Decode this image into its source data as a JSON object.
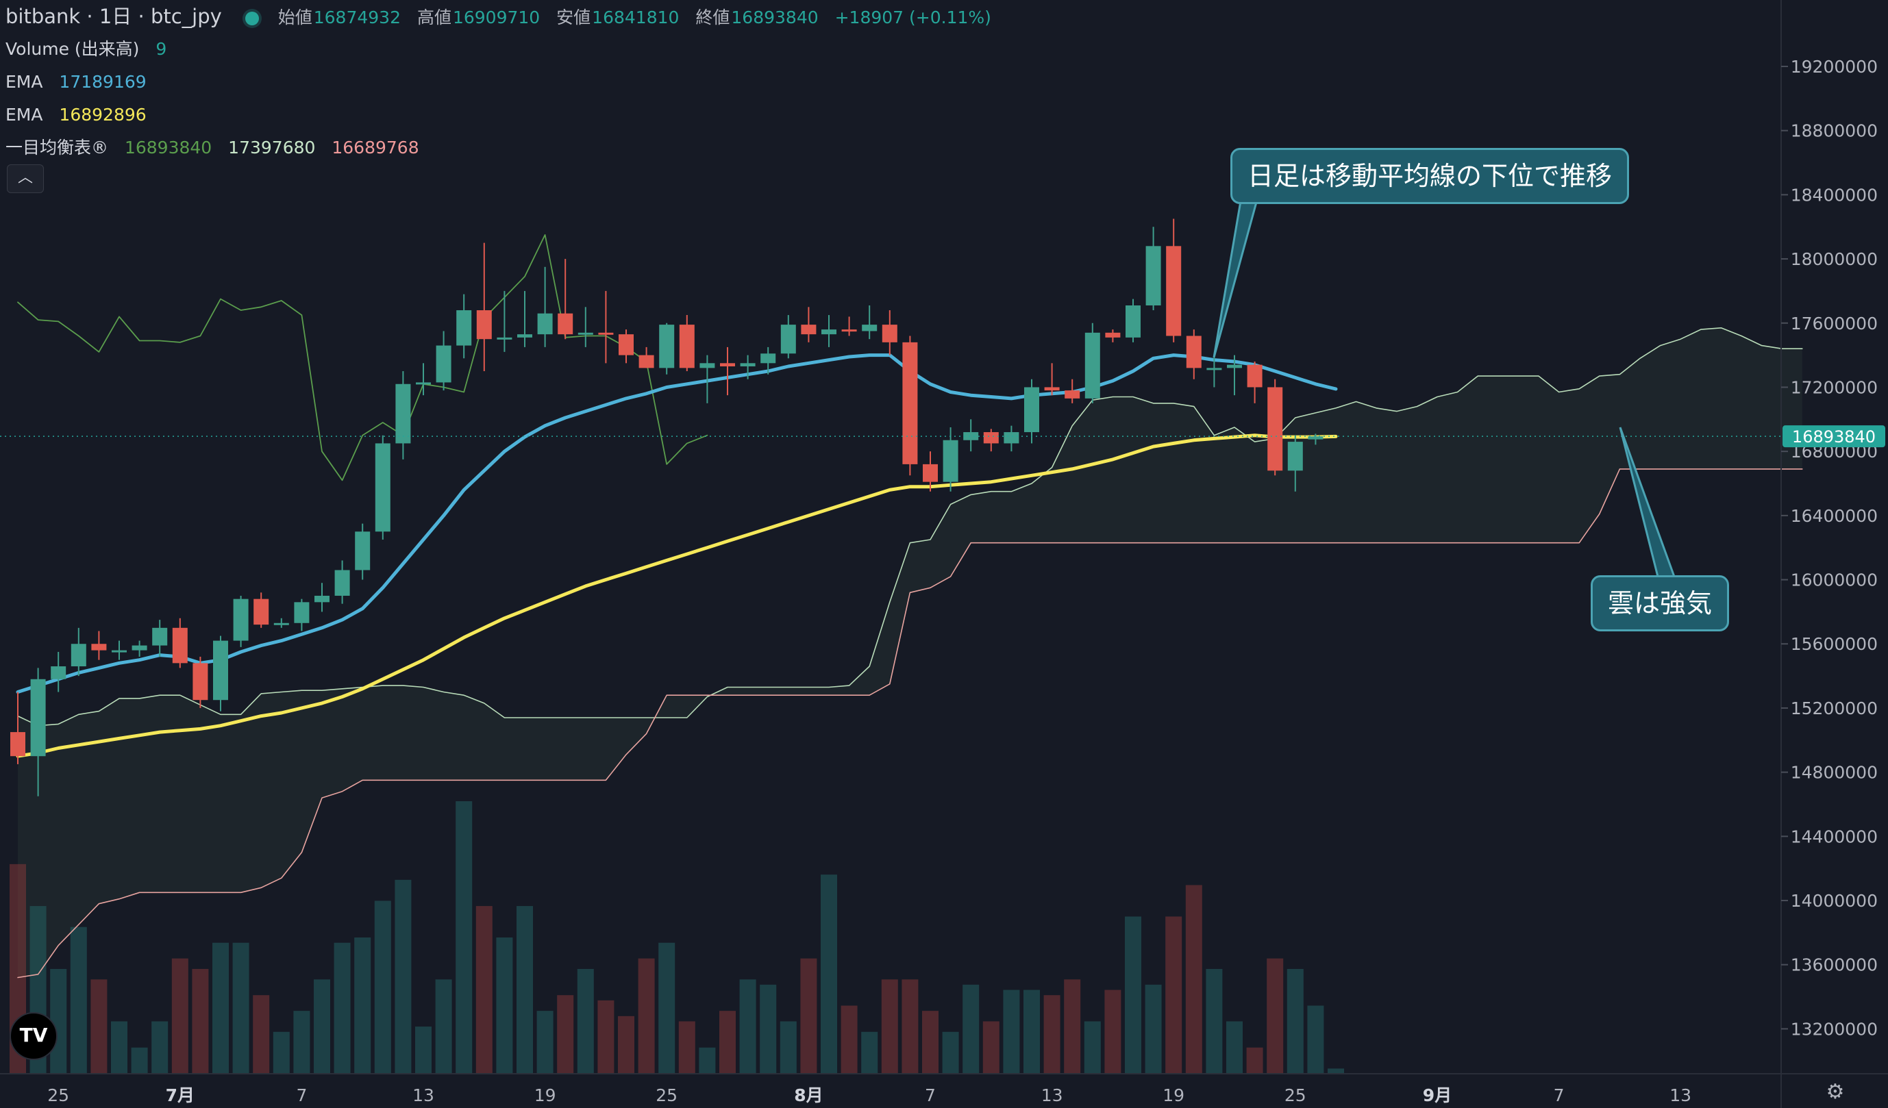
{
  "header": {
    "title": "bitbank · 1日 · btc_jpy",
    "ohlc": [
      {
        "k": "始値",
        "v": "16874932"
      },
      {
        "k": "高値",
        "v": "16909710"
      },
      {
        "k": "安値",
        "v": "16841810"
      },
      {
        "k": "終値",
        "v": "16893840"
      }
    ],
    "change": "+18907 (+0.11%)"
  },
  "indicators": {
    "volume": {
      "label": "Volume (出来高)",
      "value": "9"
    },
    "ema1": {
      "label": "EMA",
      "value": "17189169",
      "color": "#4fb3d9"
    },
    "ema2": {
      "label": "EMA",
      "value": "16892896",
      "color": "#f5e85a"
    },
    "ichimoku": {
      "label": "一目均衡表®",
      "values": [
        "16893840",
        "17397680",
        "16689768"
      ],
      "colors": [
        "#5b9e4d",
        "#c8e6c9",
        "#ef9a9a"
      ]
    }
  },
  "callouts": {
    "daily": "日足は移動平均線の下位で推移",
    "cloud": "雲は強気"
  },
  "price_tag": "16893840",
  "colors": {
    "up": "#3e9e8c",
    "down": "#e15a4f",
    "background": "#161a25",
    "grid": "#2a2e39"
  },
  "chart_data": {
    "type": "candlestick",
    "yaxis_ticks": [
      13200000,
      13600000,
      14000000,
      14400000,
      14800000,
      15200000,
      15600000,
      16000000,
      16400000,
      16800000,
      17200000,
      17600000,
      18000000,
      18400000,
      18800000,
      19200000
    ],
    "ylim": [
      12920000,
      19550000
    ],
    "xaxis_ticks": [
      {
        "i": 2,
        "label": "25",
        "bold": false
      },
      {
        "i": 8,
        "label": "7月",
        "bold": true
      },
      {
        "i": 14,
        "label": "7",
        "bold": false
      },
      {
        "i": 20,
        "label": "13",
        "bold": false
      },
      {
        "i": 26,
        "label": "19",
        "bold": false
      },
      {
        "i": 32,
        "label": "25",
        "bold": false
      },
      {
        "i": 39,
        "label": "8月",
        "bold": true
      },
      {
        "i": 45,
        "label": "7",
        "bold": false
      },
      {
        "i": 51,
        "label": "13",
        "bold": false
      },
      {
        "i": 57,
        "label": "19",
        "bold": false
      },
      {
        "i": 63,
        "label": "25",
        "bold": false
      },
      {
        "i": 70,
        "label": "9月",
        "bold": true
      },
      {
        "i": 76,
        "label": "7",
        "bold": false
      },
      {
        "i": 82,
        "label": "13",
        "bold": false
      }
    ],
    "candles": [
      [
        15050000,
        15300000,
        14850000,
        14900000
      ],
      [
        14900000,
        15450000,
        14650000,
        15380000
      ],
      [
        15380000,
        15550000,
        15300000,
        15460000
      ],
      [
        15460000,
        15700000,
        15400000,
        15600000
      ],
      [
        15600000,
        15680000,
        15500000,
        15560000
      ],
      [
        15560000,
        15620000,
        15500000,
        15560000
      ],
      [
        15560000,
        15620000,
        15520000,
        15590000
      ],
      [
        15590000,
        15750000,
        15520000,
        15700000
      ],
      [
        15700000,
        15760000,
        15450000,
        15480000
      ],
      [
        15480000,
        15520000,
        15200000,
        15250000
      ],
      [
        15250000,
        15650000,
        15180000,
        15620000
      ],
      [
        15620000,
        15900000,
        15580000,
        15880000
      ],
      [
        15880000,
        15920000,
        15700000,
        15720000
      ],
      [
        15720000,
        15760000,
        15700000,
        15730000
      ],
      [
        15730000,
        15880000,
        15680000,
        15860000
      ],
      [
        15860000,
        15980000,
        15800000,
        15900000
      ],
      [
        15900000,
        16120000,
        15850000,
        16060000
      ],
      [
        16060000,
        16350000,
        16000000,
        16300000
      ],
      [
        16300000,
        16900000,
        16250000,
        16850000
      ],
      [
        16850000,
        17300000,
        16750000,
        17220000
      ],
      [
        17220000,
        17350000,
        17150000,
        17230000
      ],
      [
        17230000,
        17550000,
        17180000,
        17460000
      ],
      [
        17460000,
        17780000,
        17380000,
        17680000
      ],
      [
        17680000,
        18100000,
        17300000,
        17500000
      ],
      [
        17500000,
        17800000,
        17420000,
        17510000
      ],
      [
        17510000,
        17800000,
        17450000,
        17530000
      ],
      [
        17530000,
        17950000,
        17450000,
        17660000
      ],
      [
        17660000,
        18000000,
        17500000,
        17530000
      ],
      [
        17530000,
        17700000,
        17450000,
        17540000
      ],
      [
        17540000,
        17800000,
        17350000,
        17530000
      ],
      [
        17530000,
        17560000,
        17350000,
        17400000
      ],
      [
        17400000,
        17450000,
        17320000,
        17320000
      ],
      [
        17320000,
        17600000,
        17280000,
        17590000
      ],
      [
        17590000,
        17650000,
        17300000,
        17320000
      ],
      [
        17320000,
        17400000,
        17100000,
        17350000
      ],
      [
        17350000,
        17450000,
        17150000,
        17330000
      ],
      [
        17330000,
        17400000,
        17250000,
        17350000
      ],
      [
        17350000,
        17450000,
        17280000,
        17410000
      ],
      [
        17410000,
        17650000,
        17380000,
        17590000
      ],
      [
        17590000,
        17700000,
        17480000,
        17530000
      ],
      [
        17530000,
        17650000,
        17450000,
        17560000
      ],
      [
        17560000,
        17640000,
        17520000,
        17550000
      ],
      [
        17550000,
        17710000,
        17500000,
        17590000
      ],
      [
        17590000,
        17680000,
        17400000,
        17480000
      ],
      [
        17480000,
        17520000,
        16650000,
        16720000
      ],
      [
        16720000,
        16800000,
        16550000,
        16610000
      ],
      [
        16610000,
        16950000,
        16550000,
        16870000
      ],
      [
        16870000,
        17000000,
        16800000,
        16920000
      ],
      [
        16920000,
        16940000,
        16800000,
        16850000
      ],
      [
        16850000,
        16960000,
        16800000,
        16920000
      ],
      [
        16920000,
        17250000,
        16850000,
        17200000
      ],
      [
        17200000,
        17350000,
        17150000,
        17180000
      ],
      [
        17180000,
        17250000,
        17100000,
        17130000
      ],
      [
        17130000,
        17600000,
        17100000,
        17540000
      ],
      [
        17540000,
        17560000,
        17480000,
        17510000
      ],
      [
        17510000,
        17750000,
        17480000,
        17710000
      ],
      [
        17710000,
        18200000,
        17680000,
        18080000
      ],
      [
        18080000,
        18250000,
        17480000,
        17520000
      ],
      [
        17520000,
        17560000,
        17250000,
        17320000
      ],
      [
        17320000,
        17400000,
        17200000,
        17320000
      ],
      [
        17320000,
        17400000,
        17150000,
        17340000
      ],
      [
        17340000,
        17360000,
        17100000,
        17200000
      ],
      [
        17200000,
        17250000,
        16650000,
        16680000
      ],
      [
        16680000,
        16900000,
        16550000,
        16860000
      ],
      [
        16874932,
        16909710,
        16841810,
        16893840
      ]
    ],
    "volumes": [
      40,
      32,
      20,
      28,
      18,
      10,
      5,
      10,
      22,
      20,
      25,
      25,
      15,
      8,
      12,
      18,
      25,
      26,
      33,
      37,
      9,
      18,
      52,
      32,
      26,
      32,
      12,
      15,
      20,
      14,
      11,
      22,
      25,
      10,
      5,
      12,
      18,
      17,
      10,
      22,
      38,
      13,
      8,
      18,
      18,
      12,
      8,
      17,
      10,
      16,
      16,
      15,
      18,
      10,
      16,
      30,
      17,
      30,
      36,
      20,
      10,
      5,
      22,
      20,
      13,
      1
    ],
    "ema_fast": [
      15300000,
      15340000,
      15380000,
      15420000,
      15450000,
      15480000,
      15500000,
      15530000,
      15520000,
      15480000,
      15500000,
      15550000,
      15590000,
      15620000,
      15660000,
      15700000,
      15750000,
      15820000,
      15950000,
      16100000,
      16250000,
      16400000,
      16560000,
      16680000,
      16800000,
      16890000,
      16960000,
      17010000,
      17050000,
      17090000,
      17130000,
      17160000,
      17200000,
      17220000,
      17240000,
      17260000,
      17280000,
      17300000,
      17330000,
      17350000,
      17370000,
      17390000,
      17400000,
      17400000,
      17300000,
      17220000,
      17170000,
      17150000,
      17140000,
      17130000,
      17150000,
      17160000,
      17170000,
      17200000,
      17240000,
      17300000,
      17380000,
      17400000,
      17390000,
      17370000,
      17360000,
      17340000,
      17300000,
      17260000,
      17220000,
      17189169
    ],
    "ema_slow": [
      14900000,
      14920000,
      14950000,
      14970000,
      14990000,
      15010000,
      15030000,
      15050000,
      15060000,
      15070000,
      15090000,
      15120000,
      15150000,
      15170000,
      15200000,
      15230000,
      15270000,
      15320000,
      15380000,
      15440000,
      15500000,
      15570000,
      15640000,
      15700000,
      15760000,
      15810000,
      15860000,
      15910000,
      15960000,
      16000000,
      16040000,
      16080000,
      16120000,
      16160000,
      16200000,
      16240000,
      16280000,
      16320000,
      16360000,
      16400000,
      16440000,
      16480000,
      16520000,
      16560000,
      16580000,
      16580000,
      16590000,
      16600000,
      16610000,
      16630000,
      16650000,
      16670000,
      16690000,
      16720000,
      16750000,
      16790000,
      16830000,
      16850000,
      16870000,
      16880000,
      16890000,
      16900000,
      16890000,
      16890000,
      16890000,
      16892896
    ],
    "lagging": [
      17730000,
      17620000,
      17610000,
      17520000,
      17420000,
      17640000,
      17490000,
      17490000,
      17480000,
      17520000,
      17750000,
      17680000,
      17700000,
      17740000,
      17650000,
      16800000,
      16620000,
      16900000,
      16980000,
      16900000,
      17220000,
      17200000,
      17170000,
      17630000,
      17760000,
      17890000,
      18150000,
      17510000,
      17520000,
      17520000,
      17450000,
      17360000,
      16720000,
      16850000,
      16900000
    ],
    "kumo_upper": [
      15150000,
      15090000,
      15100000,
      15160000,
      15180000,
      15260000,
      15260000,
      15280000,
      15280000,
      15220000,
      15160000,
      15160000,
      15290000,
      15300000,
      15310000,
      15310000,
      15320000,
      15330000,
      15340000,
      15340000,
      15330000,
      15300000,
      15280000,
      15230000,
      15140000,
      15140000,
      15140000,
      15140000,
      15140000,
      15140000,
      15140000,
      15140000,
      15140000,
      15140000,
      15270000,
      15330000,
      15330000,
      15330000,
      15330000,
      15330000,
      15330000,
      15340000,
      15460000,
      15860000,
      16230000,
      16250000,
      16470000,
      16530000,
      16550000,
      16550000,
      16600000,
      16700000,
      16960000,
      17120000,
      17140000,
      17140000,
      17100000,
      17100000,
      17080000,
      16900000,
      16950000,
      16860000,
      16880000,
      17010000,
      17040000,
      17070000,
      17110000,
      17070000,
      17050000,
      17080000,
      17140000,
      17170000,
      17270000,
      17270000,
      17270000,
      17270000,
      17170000,
      17190000,
      17270000,
      17280000,
      17380000,
      17460000,
      17500000,
      17560000,
      17570000,
      17520000,
      17460000,
      17440000,
      17440000
    ],
    "kumo_lower": [
      13520000,
      13540000,
      13720000,
      13850000,
      13980000,
      14010000,
      14050000,
      14050000,
      14050000,
      14050000,
      14050000,
      14050000,
      14080000,
      14140000,
      14300000,
      14640000,
      14680000,
      14750000,
      14750000,
      14750000,
      14750000,
      14750000,
      14750000,
      14750000,
      14750000,
      14750000,
      14750000,
      14750000,
      14750000,
      14750000,
      14910000,
      15040000,
      15280000,
      15280000,
      15280000,
      15280000,
      15280000,
      15280000,
      15280000,
      15280000,
      15280000,
      15280000,
      15280000,
      15350000,
      15920000,
      15950000,
      16020000,
      16230000,
      16230000,
      16230000,
      16230000,
      16230000,
      16230000,
      16230000,
      16230000,
      16230000,
      16230000,
      16230000,
      16230000,
      16230000,
      16230000,
      16230000,
      16230000,
      16230000,
      16230000,
      16230000,
      16230000,
      16230000,
      16230000,
      16230000,
      16230000,
      16230000,
      16230000,
      16230000,
      16230000,
      16230000,
      16230000,
      16230000,
      16410000,
      16690000,
      16690000,
      16690000,
      16690000,
      16690000,
      16690000,
      16690000,
      16690000,
      16690000,
      16690000
    ]
  }
}
